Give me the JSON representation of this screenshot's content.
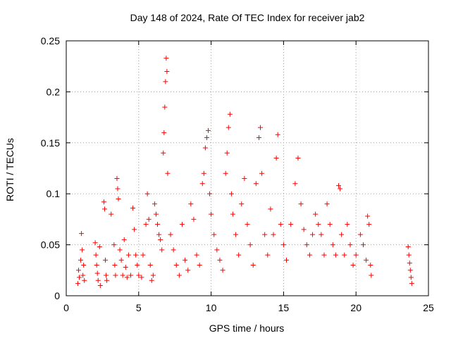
{
  "chart_data": {
    "type": "scatter",
    "title": "Day 148 of 2024, Rate Of TEC Index for receiver jab2",
    "xlabel": "GPS time / hours",
    "ylabel": "ROTI / TECUs",
    "xlim": [
      0,
      25
    ],
    "ylim": [
      0,
      0.25
    ],
    "x_ticks": [
      0,
      5,
      10,
      15,
      20,
      25
    ],
    "x_tick_labels": [
      "0",
      "5",
      "10",
      "15",
      "20",
      "25"
    ],
    "y_ticks": [
      0,
      0.05,
      0.1,
      0.15,
      0.2,
      0.25
    ],
    "y_tick_labels": [
      "0",
      "0.05",
      "0.1",
      "0.15",
      "0.2",
      "0.25"
    ],
    "grid": true,
    "marker": "+",
    "color": "#ff0000",
    "series": [
      {
        "points": [
          [
            0.8,
            0.012
          ],
          [
            0.85,
            0.025
          ],
          [
            0.9,
            0.018
          ],
          [
            1.0,
            0.035
          ],
          [
            1.05,
            0.061
          ],
          [
            1.1,
            0.045
          ],
          [
            1.15,
            0.02
          ],
          [
            1.2,
            0.03
          ],
          [
            1.25,
            0.015
          ],
          [
            2.0,
            0.052
          ],
          [
            2.05,
            0.04
          ],
          [
            2.1,
            0.03
          ],
          [
            2.15,
            0.022
          ],
          [
            2.2,
            0.015
          ],
          [
            2.3,
            0.048
          ],
          [
            2.35,
            0.01
          ],
          [
            2.6,
            0.092
          ],
          [
            2.65,
            0.085
          ],
          [
            2.7,
            0.035
          ],
          [
            2.75,
            0.02
          ],
          [
            2.8,
            0.015
          ],
          [
            3.1,
            0.08
          ],
          [
            3.3,
            0.05
          ],
          [
            3.35,
            0.03
          ],
          [
            3.4,
            0.02
          ],
          [
            3.5,
            0.115
          ],
          [
            3.55,
            0.105
          ],
          [
            3.6,
            0.095
          ],
          [
            3.7,
            0.045
          ],
          [
            3.8,
            0.035
          ],
          [
            3.9,
            0.02
          ],
          [
            4.0,
            0.055
          ],
          [
            4.1,
            0.028
          ],
          [
            4.2,
            0.018
          ],
          [
            4.3,
            0.04
          ],
          [
            4.45,
            0.02
          ],
          [
            4.6,
            0.086
          ],
          [
            4.7,
            0.065
          ],
          [
            4.8,
            0.04
          ],
          [
            4.9,
            0.03
          ],
          [
            5.0,
            0.02
          ],
          [
            5.2,
            0.018
          ],
          [
            5.3,
            0.04
          ],
          [
            5.5,
            0.07
          ],
          [
            5.6,
            0.1
          ],
          [
            5.7,
            0.075
          ],
          [
            5.8,
            0.03
          ],
          [
            5.9,
            0.015
          ],
          [
            6.0,
            0.02
          ],
          [
            6.1,
            0.09
          ],
          [
            6.2,
            0.08
          ],
          [
            6.3,
            0.07
          ],
          [
            6.4,
            0.06
          ],
          [
            6.5,
            0.055
          ],
          [
            6.6,
            0.045
          ],
          [
            6.7,
            0.14
          ],
          [
            6.75,
            0.16
          ],
          [
            6.8,
            0.185
          ],
          [
            6.85,
            0.21
          ],
          [
            6.9,
            0.233
          ],
          [
            6.95,
            0.22
          ],
          [
            7.0,
            0.12
          ],
          [
            7.2,
            0.06
          ],
          [
            7.4,
            0.045
          ],
          [
            7.6,
            0.03
          ],
          [
            7.8,
            0.02
          ],
          [
            8.0,
            0.07
          ],
          [
            8.2,
            0.035
          ],
          [
            8.4,
            0.025
          ],
          [
            8.6,
            0.09
          ],
          [
            8.8,
            0.075
          ],
          [
            9.0,
            0.04
          ],
          [
            9.2,
            0.03
          ],
          [
            9.4,
            0.11
          ],
          [
            9.5,
            0.12
          ],
          [
            9.6,
            0.145
          ],
          [
            9.7,
            0.155
          ],
          [
            9.8,
            0.162
          ],
          [
            9.9,
            0.1
          ],
          [
            10.0,
            0.08
          ],
          [
            10.2,
            0.06
          ],
          [
            10.4,
            0.045
          ],
          [
            10.6,
            0.035
          ],
          [
            10.8,
            0.025
          ],
          [
            11.0,
            0.12
          ],
          [
            11.1,
            0.14
          ],
          [
            11.2,
            0.165
          ],
          [
            11.3,
            0.178
          ],
          [
            11.4,
            0.1
          ],
          [
            11.5,
            0.08
          ],
          [
            11.7,
            0.06
          ],
          [
            11.9,
            0.04
          ],
          [
            12.1,
            0.09
          ],
          [
            12.3,
            0.115
          ],
          [
            12.5,
            0.07
          ],
          [
            12.7,
            0.05
          ],
          [
            12.9,
            0.03
          ],
          [
            13.1,
            0.11
          ],
          [
            13.3,
            0.155
          ],
          [
            13.4,
            0.165
          ],
          [
            13.5,
            0.12
          ],
          [
            13.7,
            0.06
          ],
          [
            13.9,
            0.04
          ],
          [
            14.1,
            0.085
          ],
          [
            14.3,
            0.06
          ],
          [
            14.5,
            0.135
          ],
          [
            14.6,
            0.158
          ],
          [
            14.8,
            0.07
          ],
          [
            15.0,
            0.05
          ],
          [
            15.2,
            0.035
          ],
          [
            15.5,
            0.07
          ],
          [
            15.8,
            0.11
          ],
          [
            16.0,
            0.135
          ],
          [
            16.2,
            0.09
          ],
          [
            16.4,
            0.065
          ],
          [
            16.6,
            0.05
          ],
          [
            16.8,
            0.04
          ],
          [
            17.0,
            0.06
          ],
          [
            17.2,
            0.08
          ],
          [
            17.4,
            0.07
          ],
          [
            17.6,
            0.06
          ],
          [
            17.8,
            0.04
          ],
          [
            18.0,
            0.09
          ],
          [
            18.2,
            0.07
          ],
          [
            18.4,
            0.05
          ],
          [
            18.6,
            0.04
          ],
          [
            18.8,
            0.108
          ],
          [
            18.9,
            0.105
          ],
          [
            19.0,
            0.06
          ],
          [
            19.2,
            0.04
          ],
          [
            19.4,
            0.07
          ],
          [
            19.6,
            0.05
          ],
          [
            19.8,
            0.03
          ],
          [
            20.0,
            0.04
          ],
          [
            20.3,
            0.06
          ],
          [
            20.5,
            0.05
          ],
          [
            20.7,
            0.035
          ],
          [
            20.8,
            0.078
          ],
          [
            20.9,
            0.07
          ],
          [
            21.0,
            0.03
          ],
          [
            21.05,
            0.02
          ],
          [
            23.6,
            0.048
          ],
          [
            23.65,
            0.04
          ],
          [
            23.7,
            0.032
          ],
          [
            23.75,
            0.025
          ],
          [
            23.8,
            0.018
          ],
          [
            23.85,
            0.012
          ]
        ]
      }
    ]
  }
}
